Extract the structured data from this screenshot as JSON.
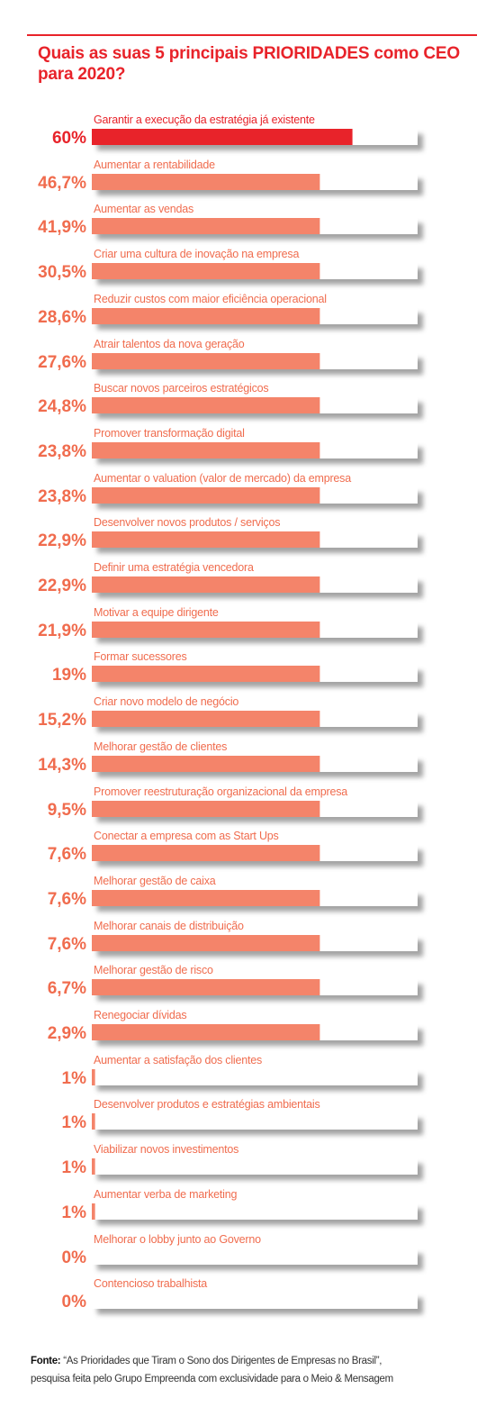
{
  "chart_data": {
    "type": "bar",
    "title": "Quais as suas 5 principais PRIORIDADES como CEO para 2020?",
    "xlabel": "",
    "ylabel": "",
    "categories": [
      "Garantir a execução da estratégia já existente",
      "Aumentar a rentabilidade",
      "Aumentar as vendas",
      "Criar uma cultura de inovação na empresa",
      "Reduzir custos com maior eficiência operacional",
      "Atrair talentos da nova geração",
      "Buscar novos parceiros estratégicos",
      "Promover transformação digital",
      "Aumentar o valuation (valor de mercado) da empresa",
      "Desenvolver novos produtos / serviços",
      "Definir uma estratégia vencedora",
      "Motivar a equipe dirigente",
      "Formar sucessores",
      "Criar novo modelo de negócio",
      "Melhorar gestão de clientes",
      "Promover reestruturação organizacional da empresa",
      "Conectar a empresa com as Start Ups",
      "Melhorar gestão de caixa",
      "Melhorar canais de distribuição",
      "Melhorar gestão de risco",
      "Renegociar dívidas",
      "Aumentar a satisfação dos clientes",
      "Desenvolver produtos e estratégias ambientais",
      "Viabilizar novos investimentos",
      "Aumentar verba de marketing",
      "Melhorar o lobby junto ao Governo",
      "Contencioso trabalhista"
    ],
    "value_labels": [
      "60%",
      "46,7%",
      "41,9%",
      "30,5%",
      "28,6%",
      "27,6%",
      "24,8%",
      "23,8%",
      "23,8%",
      "22,9%",
      "22,9%",
      "21,9%",
      "19%",
      "15,2%",
      "14,3%",
      "9,5%",
      "7,6%",
      "7,6%",
      "7,6%",
      "6,7%",
      "2,9%",
      "1%",
      "1%",
      "1%",
      "1%",
      "0%",
      "0%"
    ],
    "values": [
      60,
      46.7,
      41.9,
      30.5,
      28.6,
      27.6,
      24.8,
      23.8,
      23.8,
      22.9,
      22.9,
      21.9,
      19,
      15.2,
      14.3,
      9.5,
      7.6,
      7.6,
      7.6,
      6.7,
      2.9,
      1,
      1,
      1,
      1,
      0,
      0
    ],
    "fill_fractions": [
      0.8,
      0.7,
      0.7,
      0.7,
      0.7,
      0.7,
      0.7,
      0.7,
      0.7,
      0.7,
      0.7,
      0.7,
      0.7,
      0.7,
      0.7,
      0.7,
      0.7,
      0.7,
      0.7,
      0.7,
      0.7,
      0.01,
      0.01,
      0.01,
      0.01,
      0,
      0
    ],
    "highlight_index": 0,
    "colors": {
      "highlight": "#e8232a",
      "bar": "#f4846a",
      "label": "#f06c4e",
      "track": "#ffffff",
      "shadow": "#9a9a9a"
    }
  },
  "source": {
    "label": "Fonte:",
    "text": " “As Prioridades que Tiram o Sono dos Dirigentes de Empresas no Brasil”,",
    "line2": "pesquisa feita pelo Grupo Empreenda com exclusividade para o Meio & Mensagem"
  }
}
